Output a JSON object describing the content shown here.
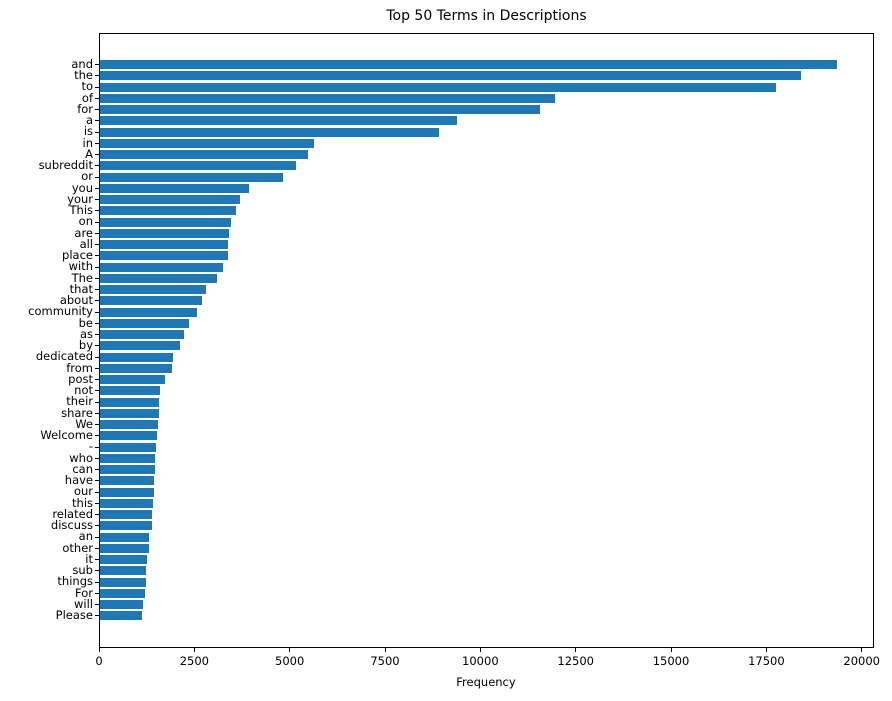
{
  "chart_data": {
    "type": "bar",
    "orientation": "horizontal",
    "title": "Top 50 Terms in Descriptions",
    "xlabel": "Frequency",
    "ylabel": "",
    "legend_position": "none",
    "grid": false,
    "bar_color": "#1f77b4",
    "background_color": "#ffffff",
    "xlim": [
      0,
      20270
    ],
    "xticks": [
      0,
      2500,
      5000,
      7500,
      10000,
      12500,
      15000,
      17500,
      20000
    ],
    "categories": [
      "and",
      "the",
      "to",
      "of",
      "for",
      "a",
      "is",
      "in",
      "A",
      "subreddit",
      "or",
      "you",
      "your",
      "This",
      "on",
      "are",
      "all",
      "place",
      "with",
      "The",
      "that",
      "about",
      "community",
      "be",
      "as",
      "by",
      "dedicated",
      "from",
      "post",
      "not",
      "their",
      "share",
      "We",
      "Welcome",
      "-",
      "who",
      "can",
      "have",
      "our",
      "this",
      "related",
      "discuss",
      "an",
      "other",
      "it",
      "sub",
      "things",
      "For",
      "will",
      "Please"
    ],
    "values": [
      19320,
      18370,
      17730,
      11940,
      11550,
      9360,
      8890,
      5620,
      5455,
      5130,
      4790,
      3910,
      3680,
      3565,
      3425,
      3390,
      3365,
      3360,
      3220,
      3060,
      2775,
      2680,
      2535,
      2340,
      2195,
      2100,
      1905,
      1890,
      1705,
      1580,
      1555,
      1540,
      1515,
      1495,
      1460,
      1450,
      1440,
      1415,
      1410,
      1400,
      1370,
      1365,
      1285,
      1280,
      1230,
      1200,
      1195,
      1170,
      1120,
      1095
    ]
  }
}
